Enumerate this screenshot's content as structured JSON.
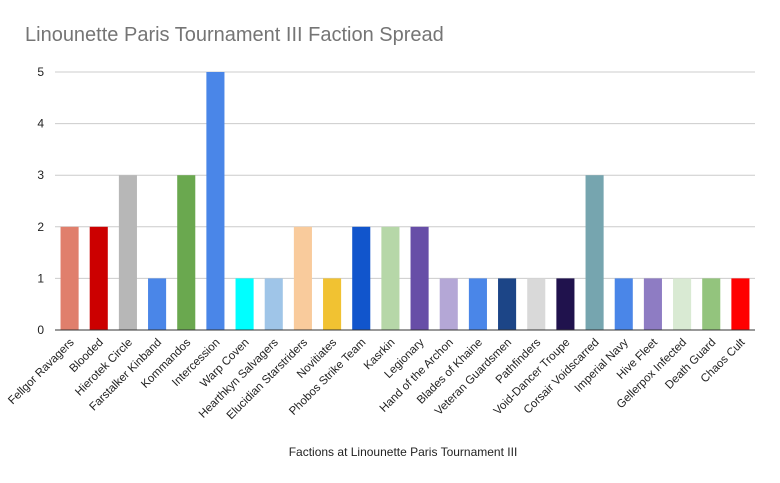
{
  "chart_data": {
    "type": "bar",
    "title": "Linounette Paris Tournament III Faction Spread",
    "xlabel": "Factions at Linounette Paris Tournament III",
    "ylabel": "",
    "ylim": [
      0,
      5
    ],
    "yticks": [
      "0",
      "1",
      "2",
      "3",
      "4",
      "5"
    ],
    "grid": true,
    "legend": "none",
    "categories": [
      "Fellgor Ravagers",
      "Blooded",
      "Hierotek Circle",
      "Farstalker Kinband",
      "Kommandos",
      "Intercession",
      "Warp Coven",
      "Hearthkyn Salvagers",
      "Elucidian Starstriders",
      "Novitiates",
      "Phobos Strike Team",
      "Kasrkin",
      "Legionary",
      "Hand of the Archon",
      "Blades of Khaine",
      "Veteran Guardsmen",
      "Pathfinders",
      "Void-Dancer Troupe",
      "Corsair Voidscarred",
      "Imperial Navy",
      "Hive Fleet",
      "Gellerpox Infected",
      "Death Guard",
      "Chaos Cult"
    ],
    "values": [
      2,
      2,
      3,
      1,
      3,
      5,
      1,
      1,
      2,
      1,
      2,
      2,
      2,
      1,
      1,
      1,
      1,
      1,
      3,
      1,
      1,
      1,
      1,
      1
    ],
    "colors": [
      "#e07f6c",
      "#cc0000",
      "#b7b7b7",
      "#4a86e8",
      "#6aa84f",
      "#4a86e8",
      "#00ffff",
      "#9fc5e8",
      "#f9cb9c",
      "#f1c232",
      "#1155cc",
      "#b6d7a8",
      "#674ea7",
      "#b4a7d6",
      "#4a86e8",
      "#1c4587",
      "#d9d9d9",
      "#20124d",
      "#76a5af",
      "#4a86e8",
      "#8e7cc3",
      "#d9ead3",
      "#93c47d",
      "#ff0000"
    ]
  }
}
